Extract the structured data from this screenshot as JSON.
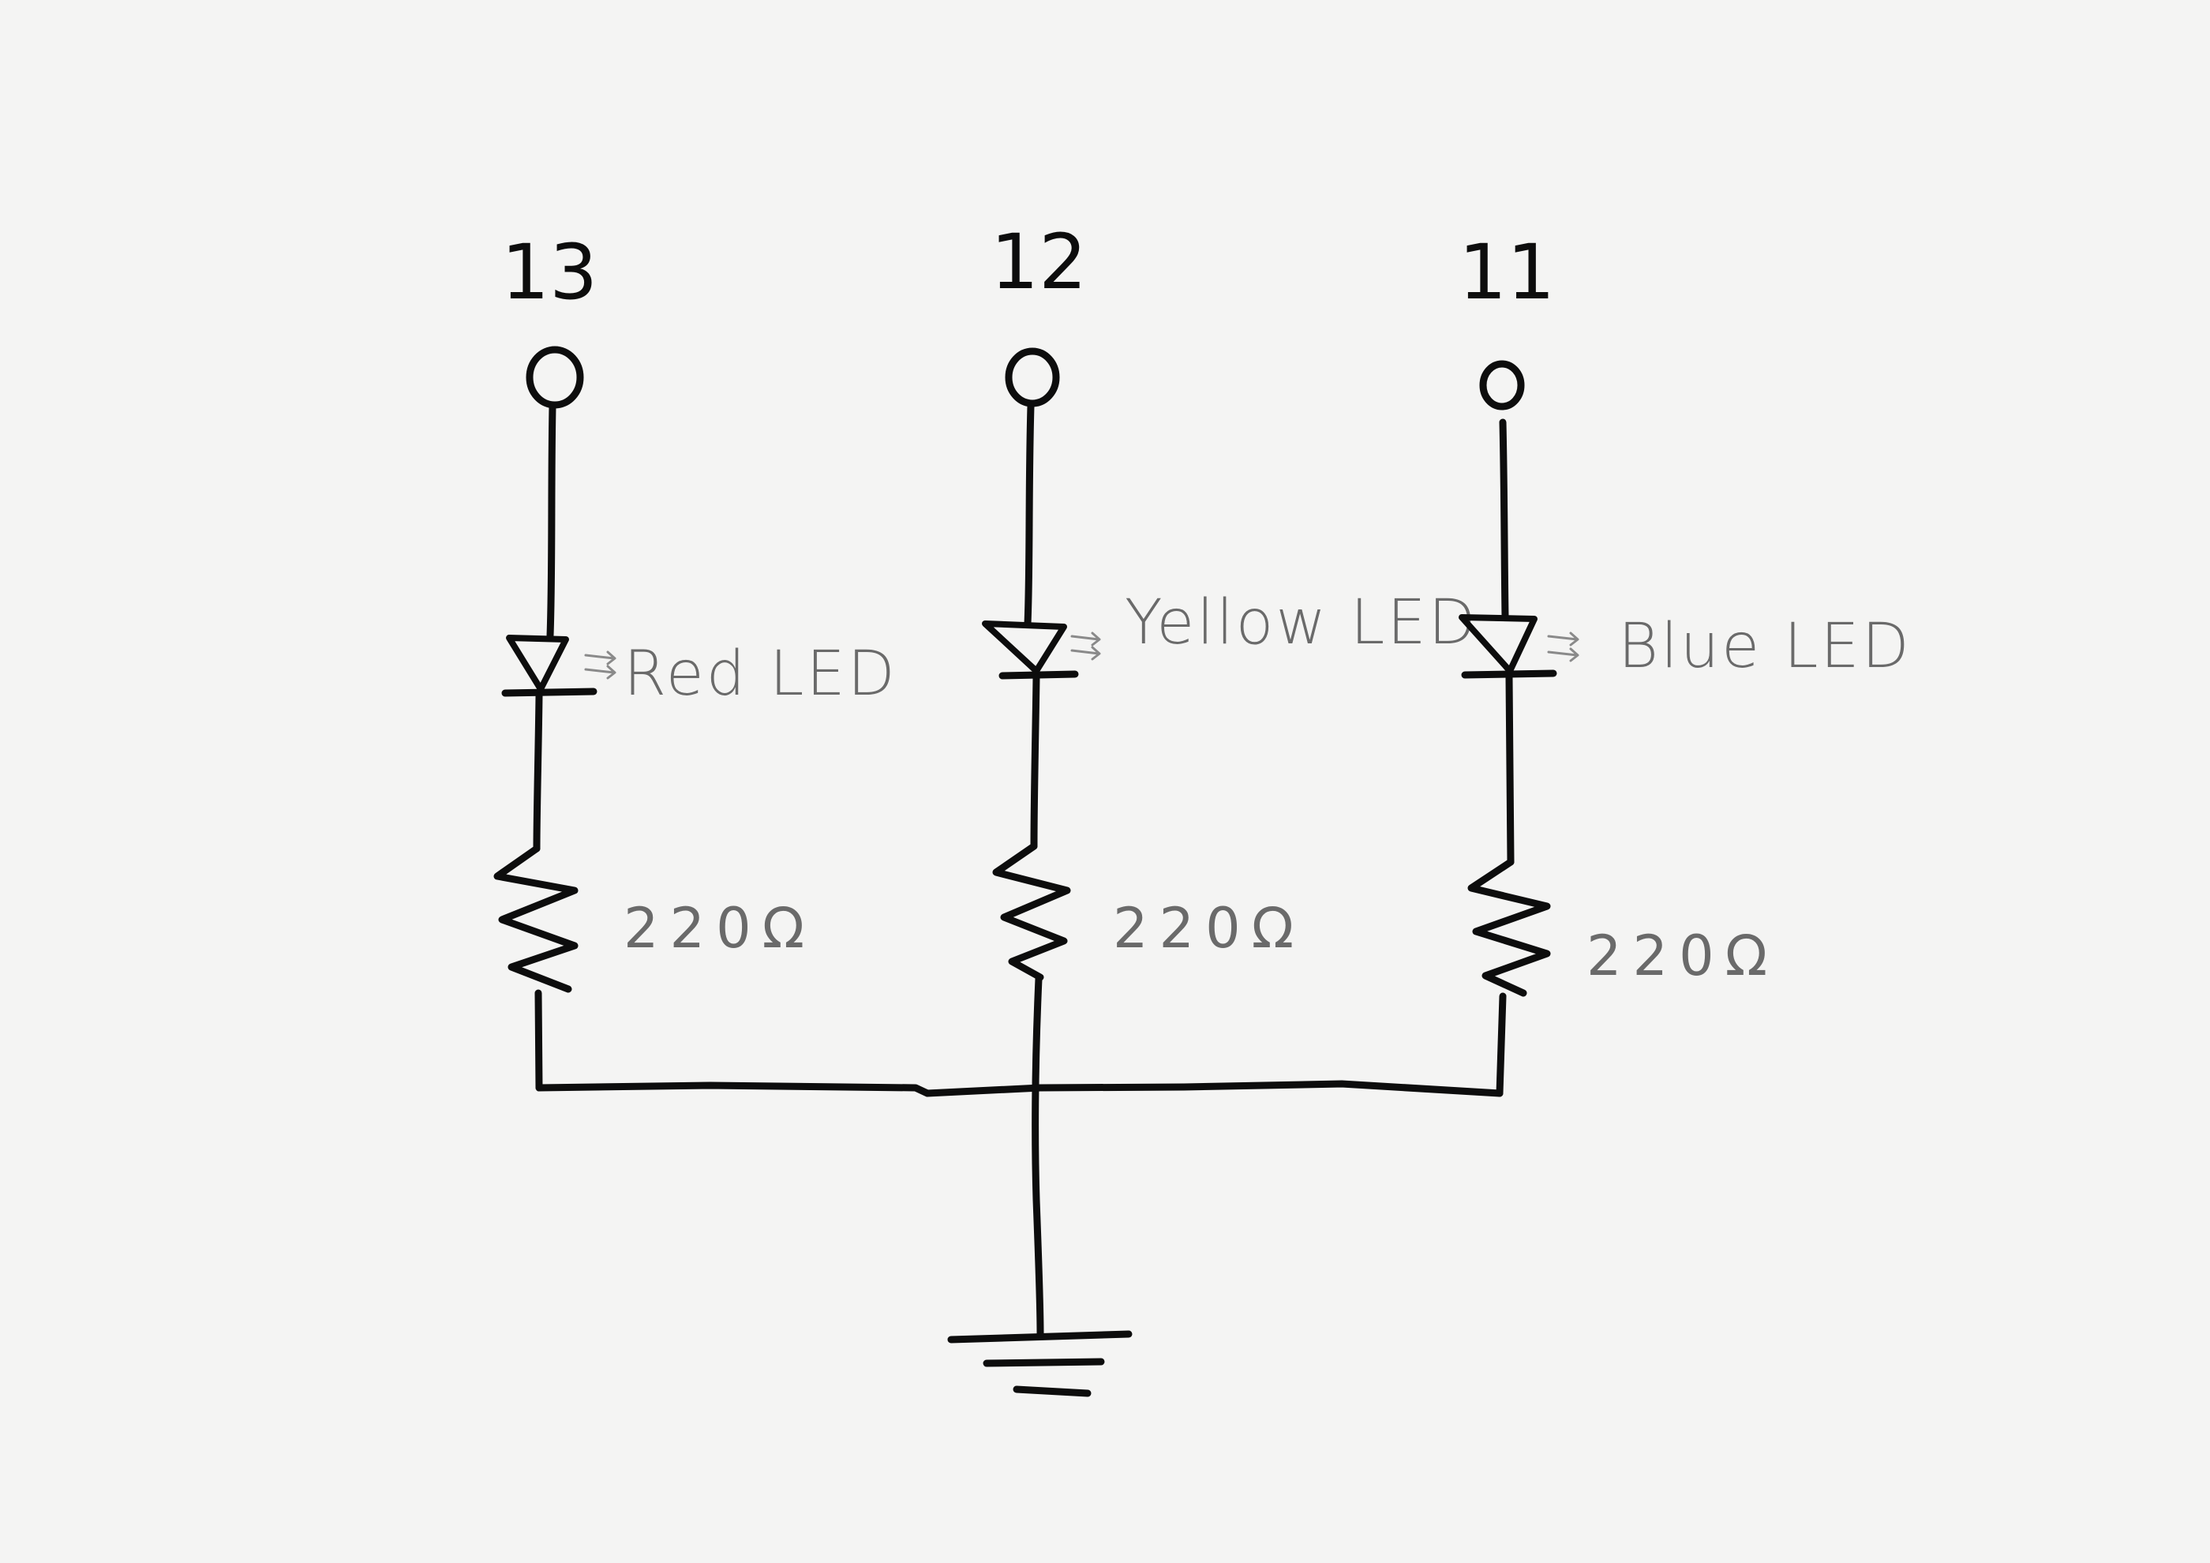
{
  "diagram": {
    "branches": [
      {
        "pin": "13",
        "led_label": "Red LED",
        "resistor_label": "220Ω"
      },
      {
        "pin": "12",
        "led_label": "Yellow LED",
        "resistor_label": "220Ω"
      },
      {
        "pin": "11",
        "led_label": "Blue LED",
        "resistor_label": "220Ω"
      }
    ],
    "colors": {
      "ink": "#0d0d0d",
      "annotation": "#6a6a6a",
      "paper": "#f4f4f3"
    }
  }
}
